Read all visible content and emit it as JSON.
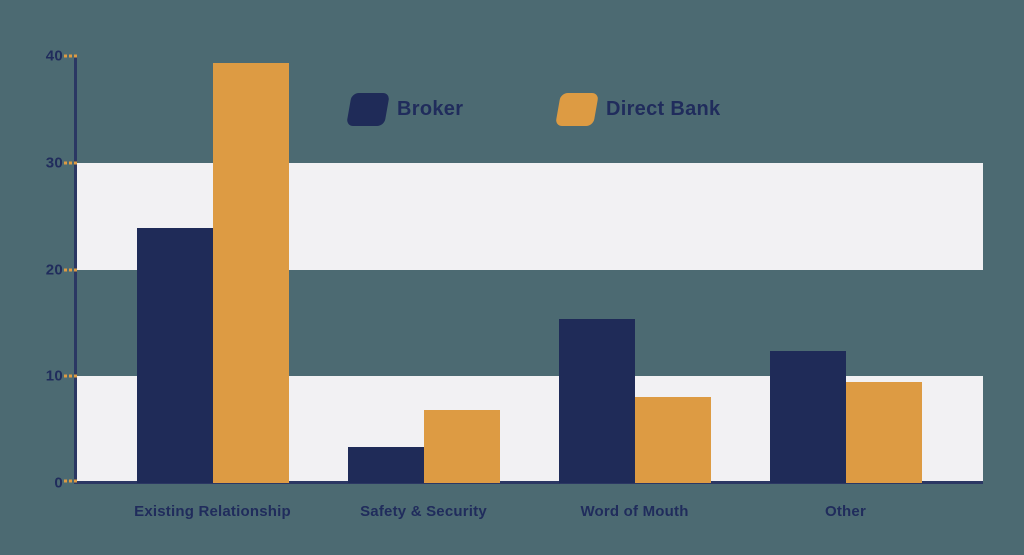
{
  "chart_data": {
    "type": "bar",
    "title": "",
    "categories": [
      "Existing Relationship",
      "Safety & Security",
      "Word of Mouth",
      "Other"
    ],
    "series": [
      {
        "name": "Broker",
        "color": "#1f2b58",
        "values": [
          23.9,
          3.4,
          15.4,
          12.4
        ]
      },
      {
        "name": "Direct Bank",
        "color": "#dd9b43",
        "values": [
          39.3,
          6.8,
          8.1,
          9.5
        ]
      }
    ],
    "xlabel": "",
    "ylabel": "",
    "ylim": [
      0,
      40
    ],
    "yticks": [
      40,
      30,
      20,
      10,
      0
    ],
    "grid": "alternating-horizontal-bands",
    "bands": [
      [
        20,
        30
      ],
      [
        0,
        10
      ]
    ],
    "legend_position": "top-center"
  },
  "colors": {
    "background": "#4c6a72",
    "band": "#f2f1f3",
    "axis": "#2b3763",
    "text": "#202c5c",
    "tick_dash": "#dd9b43",
    "broker": "#1f2b58",
    "direct_bank": "#dd9b43"
  }
}
